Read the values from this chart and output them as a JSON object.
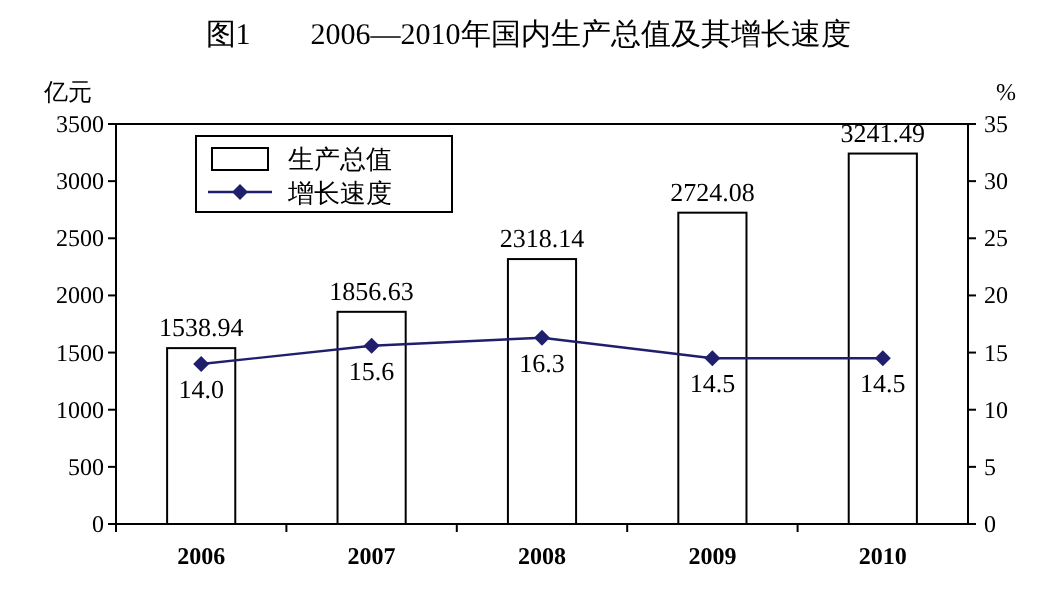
{
  "chart_data": {
    "type": "bar",
    "title": "图1　　2006—2010年国内生产总值及其增长速度",
    "ylabel": "亿元",
    "y2label": "%",
    "categories": [
      "2006",
      "2007",
      "2008",
      "2009",
      "2010"
    ],
    "series": [
      {
        "name": "生产总值",
        "color": "#ffffff",
        "values": [
          1538.94,
          1856.63,
          2318.14,
          2724.08,
          3241.49
        ],
        "value_labels": [
          "1538.94",
          "1856.63",
          "2318.14",
          "2724.08",
          "3241.49"
        ]
      },
      {
        "name": "增长速度",
        "type": "line",
        "axis": "y2",
        "color": "#1f1f6e",
        "values": [
          14.0,
          15.6,
          16.3,
          14.5,
          14.5
        ],
        "value_labels": [
          "14.0",
          "15.6",
          "16.3",
          "14.5",
          "14.5"
        ],
        "marker": "diamond"
      }
    ],
    "ylim": [
      0,
      3500
    ],
    "yticks": [
      0,
      500,
      1000,
      1500,
      2000,
      2500,
      3000,
      3500
    ],
    "y2lim": [
      0,
      35
    ],
    "y2ticks": [
      0,
      5,
      10,
      15,
      20,
      25,
      30,
      35
    ],
    "legend": "top left",
    "grid": false
  }
}
